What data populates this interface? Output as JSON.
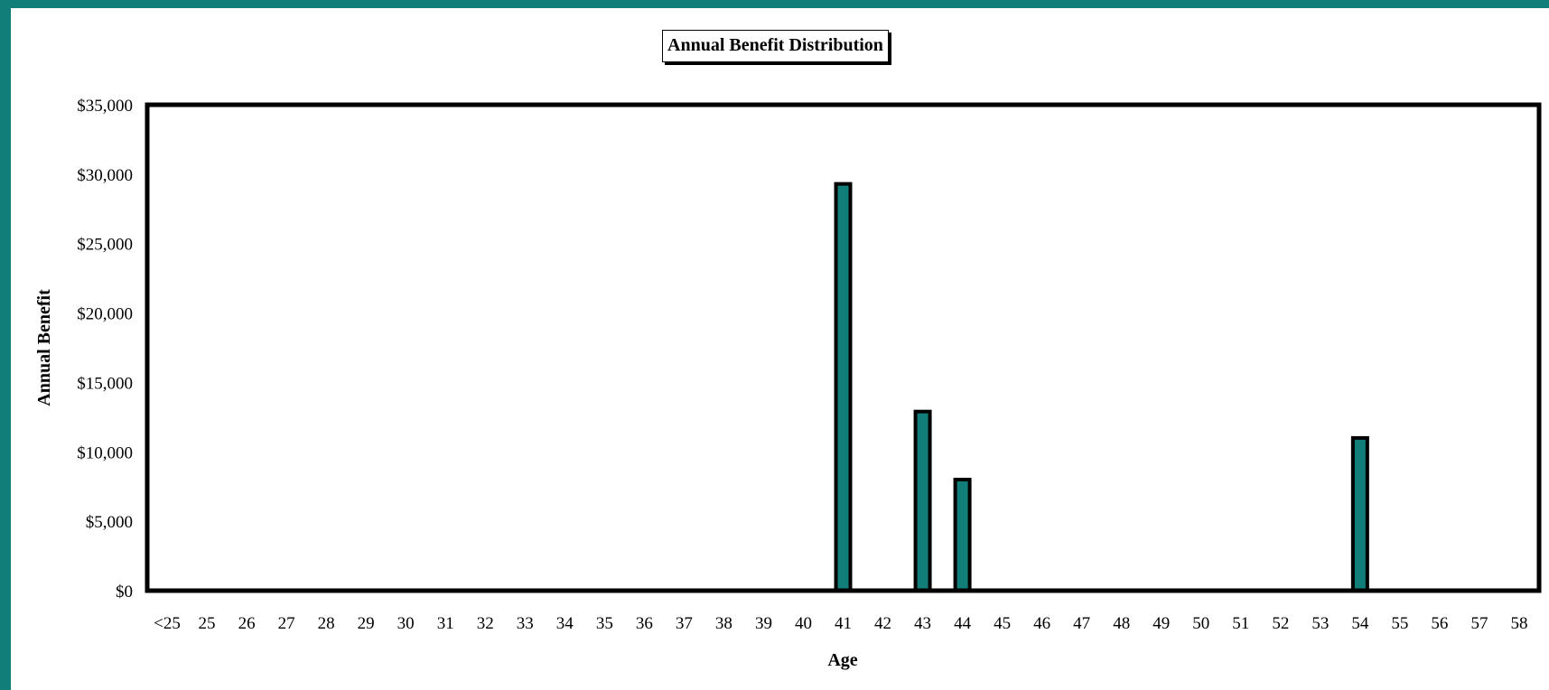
{
  "colors": {
    "frame": "#127e7a",
    "bar": "#127e7a",
    "bar_outline": "#000000"
  },
  "chart_data": {
    "type": "bar",
    "title": "Annual Benefit Distribution",
    "xlabel": "Age",
    "ylabel": "Annual Benefit",
    "ylim": [
      0,
      35000
    ],
    "y_ticks": [
      "$0",
      "$5,000",
      "$10,000",
      "$15,000",
      "$20,000",
      "$25,000",
      "$30,000",
      "$35,000"
    ],
    "categories": [
      "<25",
      "25",
      "26",
      "27",
      "28",
      "29",
      "30",
      "31",
      "32",
      "33",
      "34",
      "35",
      "36",
      "37",
      "38",
      "39",
      "40",
      "41",
      "42",
      "43",
      "44",
      "45",
      "46",
      "47",
      "48",
      "49",
      "50",
      "51",
      "52",
      "53",
      "54",
      "55",
      "56",
      "57",
      "58"
    ],
    "values": [
      0,
      0,
      0,
      0,
      0,
      0,
      0,
      0,
      0,
      0,
      0,
      0,
      0,
      0,
      0,
      0,
      0,
      29300,
      0,
      12900,
      8000,
      0,
      0,
      0,
      0,
      0,
      0,
      0,
      0,
      0,
      11000,
      0,
      0,
      0,
      0
    ],
    "grid": false,
    "legend": "none"
  }
}
